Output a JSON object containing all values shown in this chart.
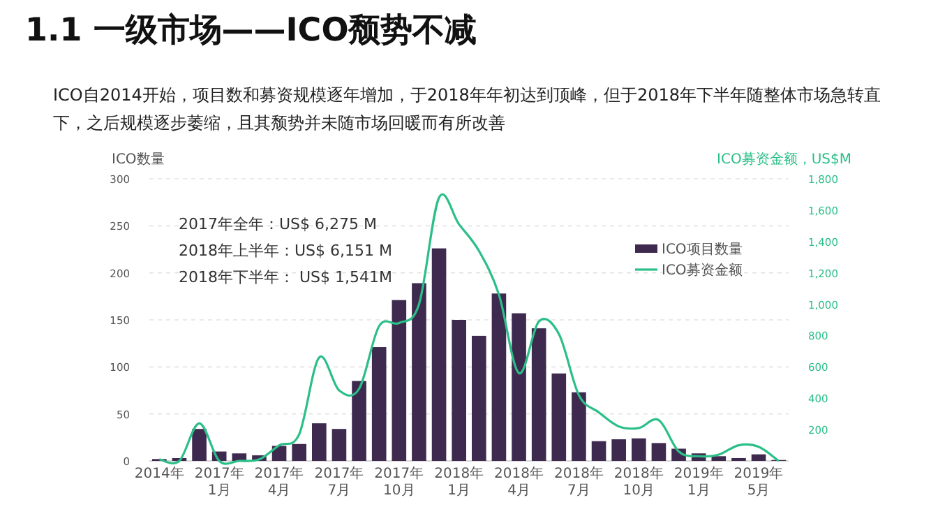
{
  "chart_data": {
    "type": "bar",
    "title": "1.1 一级市场——ICO颓势不减",
    "subtitle": "ICO自2014开始，项目数和募资规模逐年增加，于2018年年初达到顶峰，但于2018年下半年随整体市场急转直下，之后规模逐步萎缩，且其颓势并未随市场回暖而有所改善",
    "ylabel": "ICO数量",
    "y2label": "ICO募资金额，US$M",
    "annotations": [
      "2017年全年：US$ 6,275 M",
      "2018年上半年：US$ 6,151 M",
      "2018年下半年： US$ 1,541M"
    ],
    "categories": [
      "2014年",
      null,
      null,
      "2017年1月",
      null,
      null,
      "2017年4月",
      null,
      null,
      "2017年7月",
      null,
      null,
      "2017年10月",
      null,
      null,
      "2018年1月",
      null,
      null,
      "2018年4月",
      null,
      null,
      "2018年7月",
      null,
      null,
      "2018年10月",
      null,
      null,
      "2019年1月",
      null,
      null,
      "2019年5月",
      null
    ],
    "series": [
      {
        "name": "ICO项目数量",
        "color": "#3d2a4e",
        "values": [
          2,
          3,
          34,
          10,
          8,
          6,
          16,
          18,
          40,
          34,
          85,
          121,
          171,
          189,
          226,
          150,
          133,
          178,
          157,
          141,
          93,
          73,
          21,
          23,
          24,
          19,
          13,
          8,
          5,
          3,
          7,
          1
        ]
      },
      {
        "name": "ICO募资金额",
        "type": "line",
        "axis": "y2",
        "color": "#2bbf88",
        "values": [
          10,
          0,
          240,
          0,
          0,
          10,
          100,
          170,
          660,
          450,
          460,
          860,
          880,
          1000,
          1680,
          1510,
          1340,
          1060,
          560,
          890,
          810,
          420,
          310,
          220,
          210,
          260,
          60,
          30,
          40,
          100,
          90,
          0
        ]
      }
    ],
    "ylim": [
      0,
      300
    ],
    "yticks": [
      0,
      50,
      100,
      150,
      200,
      250,
      300
    ],
    "y2lim": [
      0,
      1800
    ],
    "y2ticks": [
      {
        "value": 200,
        "label": "200"
      },
      {
        "value": 400,
        "label": "400"
      },
      {
        "value": 600,
        "label": "600"
      },
      {
        "value": 800,
        "label": "800"
      },
      {
        "value": 1000,
        "label": "1,000"
      },
      {
        "value": 1200,
        "label": "1,200"
      },
      {
        "value": 1400,
        "label": "1,400"
      },
      {
        "value": 1600,
        "label": "1,600"
      },
      {
        "value": 1800,
        "label": "1,800"
      }
    ],
    "grid": "y",
    "legend": "top right"
  }
}
